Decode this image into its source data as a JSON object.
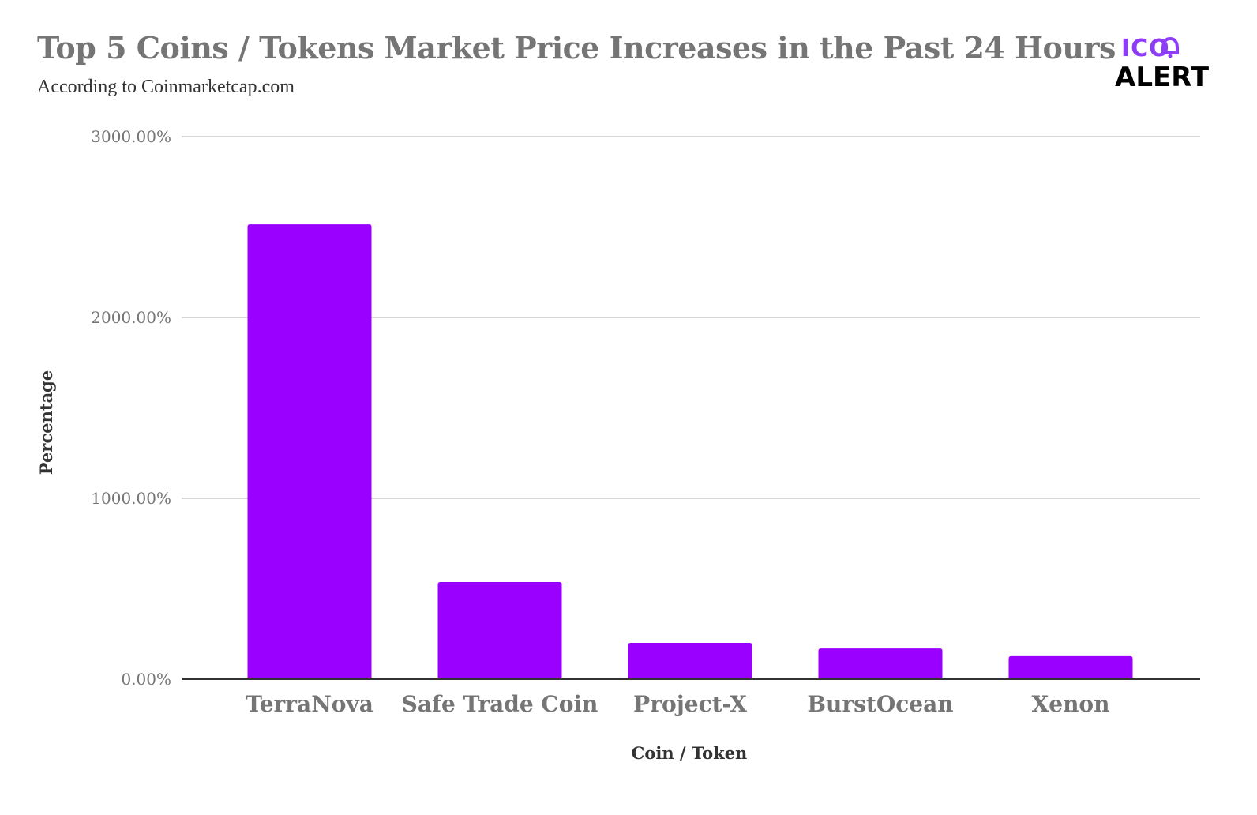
{
  "header": {
    "title": "Top 5 Coins / Tokens Market Price Increases in the Past 24 Hours",
    "subtitle": "According to Coinmarketcap.com"
  },
  "logo": {
    "line1": "ICO",
    "line2": "ALERT",
    "icon": "bell-icon",
    "accent_color": "#8e3cf7"
  },
  "chart_data": {
    "type": "bar",
    "title": "Top 5 Coins / Tokens Market Price Increases in the Past 24 Hours",
    "subtitle": "According to Coinmarketcap.com",
    "xlabel": "Coin / Token",
    "ylabel": "Percentage",
    "categories": [
      "TerraNova",
      "Safe Trade Coin",
      "Project-X",
      "BurstOcean",
      "Xenon"
    ],
    "values": [
      2515,
      537,
      201,
      170,
      127
    ],
    "unit": "%",
    "ylim": [
      0,
      3000
    ],
    "yticks": [
      0,
      1000,
      2000,
      3000
    ],
    "ytick_labels": [
      "0.00%",
      "1000.00%",
      "2000.00%",
      "3000.00%"
    ],
    "grid": true,
    "legend": "none",
    "bar_color": "#9900ff",
    "gridline_color": "#cccccc",
    "baseline_color": "#333333"
  }
}
